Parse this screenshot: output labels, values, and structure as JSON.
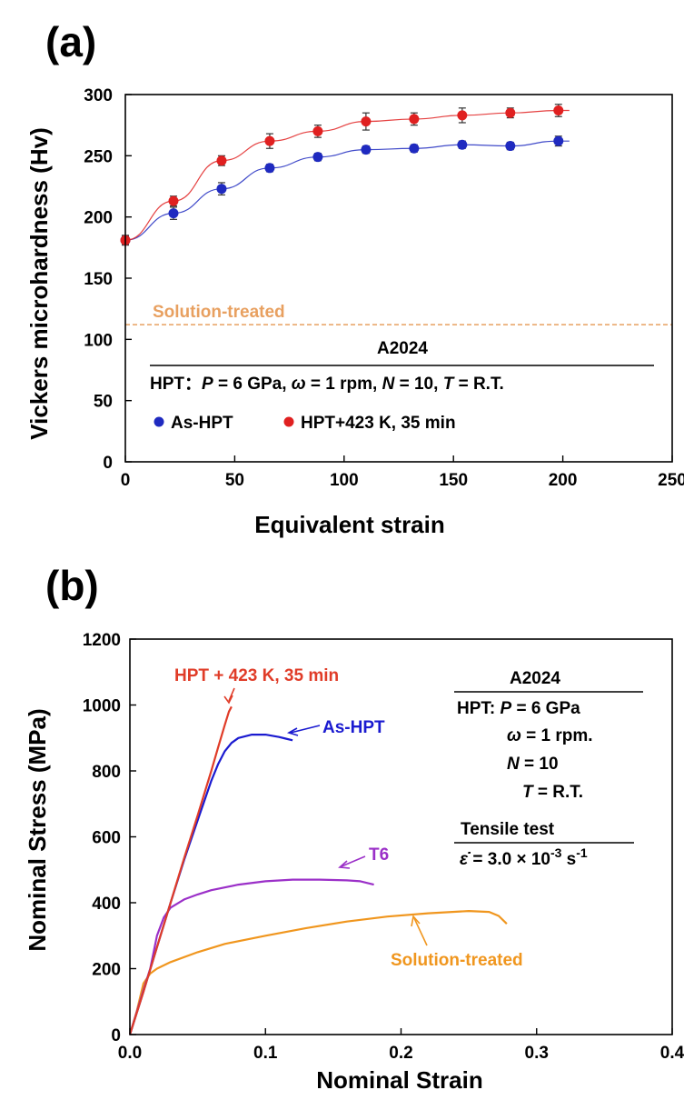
{
  "chart_data": [
    {
      "type": "scatter",
      "panel_label": "(a)",
      "xlabel": "Equivalent strain",
      "ylabel": "Vickers microhardness (Hv)",
      "xlim": [
        0,
        250
      ],
      "ylim": [
        0,
        300
      ],
      "xticks": [
        "0",
        "50",
        "100",
        "150",
        "200",
        "250"
      ],
      "yticks": [
        "0",
        "50",
        "100",
        "150",
        "200",
        "250",
        "300"
      ],
      "reference_line": {
        "label": "Solution-treated",
        "y": 112,
        "color": "#e8a060"
      },
      "material": "A2024",
      "condition_text": {
        "prefix": "HPT：",
        "p_sym": "P",
        "p_val": " = 6 GPa, ",
        "w_sym": "ω",
        "w_val": " = 1 rpm, ",
        "n_sym": "N",
        "n_val": " = 10, ",
        "t_sym": "T",
        "t_val": " = R.T."
      },
      "series": [
        {
          "name": "As-HPT",
          "color": "#1f2ac0",
          "x": [
            0,
            22,
            44,
            66,
            88,
            110,
            132,
            154,
            176,
            198
          ],
          "y": [
            181,
            203,
            223,
            240,
            249,
            255,
            256,
            259,
            258,
            262
          ],
          "err": [
            4,
            5,
            5,
            3,
            3,
            3,
            3,
            3,
            3,
            4
          ]
        },
        {
          "name": "HPT+423 K, 35 min",
          "color": "#e02020",
          "x": [
            0,
            22,
            44,
            66,
            88,
            110,
            132,
            154,
            176,
            198
          ],
          "y": [
            181,
            213,
            246,
            262,
            270,
            278,
            280,
            283,
            285,
            287
          ],
          "err": [
            3,
            4,
            4,
            6,
            5,
            7,
            5,
            6,
            4,
            5
          ]
        }
      ]
    },
    {
      "type": "line",
      "panel_label": "(b)",
      "xlabel": "Nominal Strain",
      "ylabel": "Nominal Stress (MPa)",
      "xlim": [
        0,
        0.4
      ],
      "ylim": [
        0,
        1200
      ],
      "xticks": [
        "0.0",
        "0.1",
        "0.2",
        "0.3",
        "0.4"
      ],
      "yticks": [
        "0",
        "200",
        "400",
        "600",
        "800",
        "1000",
        "1200"
      ],
      "material": "A2024",
      "conditions": {
        "prefix": "HPT: ",
        "p_sym": "P",
        "p_val": " = 6 GPa",
        "w_sym": "ω",
        "w_val": " = 1 rpm.",
        "n_sym": "N",
        "n_val": " = 10",
        "t_sym": "T",
        "t_val": " = R.T."
      },
      "test": {
        "title": "Tensile test",
        "rate_sym": "ε̇",
        "rate_val": " = 3.0 × 10",
        "rate_exp": "-3",
        "rate_unit": " s",
        "rate_unit_exp": "-1"
      },
      "series": [
        {
          "name": "HPT + 423 K, 35 min",
          "color": "#e03c28",
          "x": [
            0,
            0.01,
            0.02,
            0.03,
            0.04,
            0.05,
            0.06,
            0.065,
            0.07,
            0.073,
            0.075
          ],
          "y": [
            0,
            130,
            265,
            400,
            535,
            665,
            800,
            870,
            940,
            980,
            995
          ]
        },
        {
          "name": "As-HPT",
          "color": "#1a1ad0",
          "x": [
            0,
            0.01,
            0.02,
            0.03,
            0.04,
            0.05,
            0.055,
            0.06,
            0.065,
            0.07,
            0.075,
            0.08,
            0.09,
            0.1,
            0.11,
            0.115,
            0.12
          ],
          "y": [
            0,
            130,
            265,
            400,
            530,
            650,
            710,
            770,
            820,
            860,
            885,
            900,
            910,
            910,
            903,
            898,
            893
          ]
        },
        {
          "name": "T6",
          "color": "#9b30c8",
          "x": [
            0,
            0.01,
            0.015,
            0.02,
            0.025,
            0.03,
            0.04,
            0.05,
            0.06,
            0.08,
            0.1,
            0.12,
            0.14,
            0.16,
            0.17,
            0.18
          ],
          "y": [
            0,
            135,
            200,
            300,
            355,
            385,
            410,
            425,
            438,
            455,
            465,
            470,
            470,
            468,
            465,
            455
          ]
        },
        {
          "name": "Solution-treated",
          "color": "#f0961e",
          "x": [
            0,
            0.005,
            0.01,
            0.015,
            0.02,
            0.03,
            0.05,
            0.07,
            0.1,
            0.13,
            0.16,
            0.19,
            0.22,
            0.25,
            0.265,
            0.272,
            0.278
          ],
          "y": [
            0,
            70,
            155,
            185,
            200,
            220,
            250,
            275,
            300,
            323,
            343,
            358,
            368,
            375,
            372,
            360,
            336
          ]
        }
      ]
    }
  ]
}
